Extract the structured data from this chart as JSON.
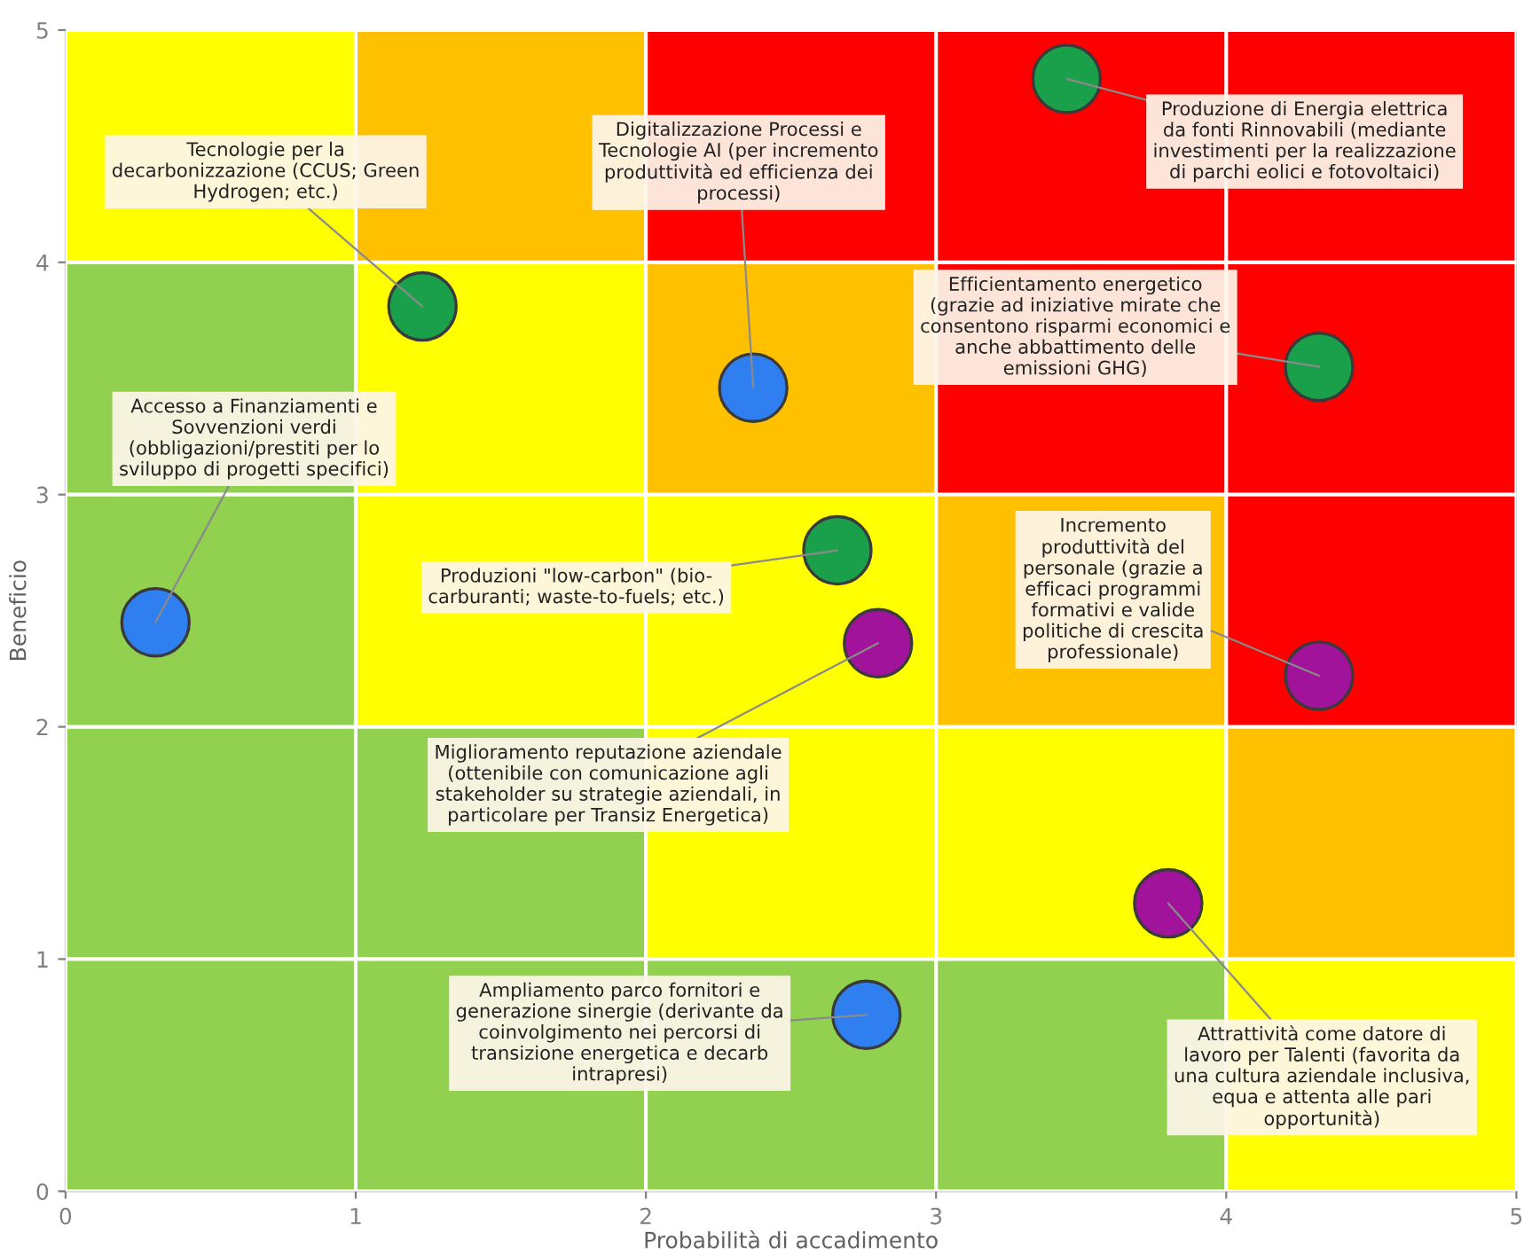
{
  "chart_data": {
    "type": "scatter",
    "xlabel": "Probabilità di accadimento",
    "ylabel": "Beneficio",
    "xlim": [
      0,
      5
    ],
    "ylim": [
      0,
      5
    ],
    "xticks": [
      0,
      1,
      2,
      3,
      4,
      5
    ],
    "yticks": [
      0,
      1,
      2,
      3,
      4,
      5
    ],
    "grid": true,
    "marker": "circle",
    "series": [
      {
        "color": "#1aa04a",
        "x": [
          1.23,
          3.45,
          4.32,
          2.66
        ],
        "values": [
          3.81,
          4.79,
          3.55,
          2.76
        ]
      },
      {
        "color": "#2f7ff0",
        "x": [
          2.37,
          0.31,
          2.76
        ],
        "values": [
          3.46,
          2.45,
          0.76
        ]
      },
      {
        "color": "#a0139a",
        "x": [
          2.8,
          4.32,
          3.8
        ],
        "values": [
          2.36,
          2.22,
          1.24
        ]
      }
    ],
    "annotations": [
      {
        "text": "Tecnologie per la\ndecarbonizzazione (CCUS; Green\nHydrogen; etc.)",
        "x": 1.23,
        "y": 3.81
      },
      {
        "text": "Digitalizzazione Processi e\nTecnologie AI (per incremento\nproduttività ed efficienza dei\nprocessi)",
        "x": 2.37,
        "y": 3.46
      },
      {
        "text": "Produzione di Energia elettrica\nda fonti Rinnovabili (mediante\ninvestimenti per la realizzazione\ndi parchi eolici e fotovoltaici)",
        "x": 3.45,
        "y": 4.79
      },
      {
        "text": "Efficientamento energetico\n(grazie ad iniziative mirate che\nconsentono risparmi economici e\nanche abbattimento delle\nemissioni GHG)",
        "x": 4.32,
        "y": 3.55
      },
      {
        "text": "Accesso a Finanziamenti e\nSovvenzioni verdi\n(obbligazioni/prestiti per lo\nsviluppo di progetti specifici)",
        "x": 0.31,
        "y": 2.45
      },
      {
        "text": "Produzioni \"low-carbon\" (bio-\ncarburanti; waste-to-fuels; etc.)",
        "x": 2.66,
        "y": 2.76
      },
      {
        "text": "Miglioramento reputazione aziendale\n(ottenibile con comunicazione agli\nstakeholder su strategie aziendali, in\nparticolare per Transiz Energetica)",
        "x": 2.8,
        "y": 2.36
      },
      {
        "text": "Incremento\nproduttività del\npersonale (grazie a\nefficaci programmi\nformativi e valide\npolitiche di crescita\nprofessionale)",
        "x": 4.32,
        "y": 2.22
      },
      {
        "text": "Attrattività come datore di\nlavoro per Talenti (favorita da\nuna cultura aziendale inclusiva,\nequa e attenta alle pari\nopportunità)",
        "x": 3.8,
        "y": 1.24
      },
      {
        "text": "Ampliamento parco fornitori e\ngenerazione sinergie (derivante da\ncoinvolgimento nei percorsi di\ntransizione energetica e decarb\nintrapresi)",
        "x": 2.76,
        "y": 0.76
      }
    ]
  }
}
